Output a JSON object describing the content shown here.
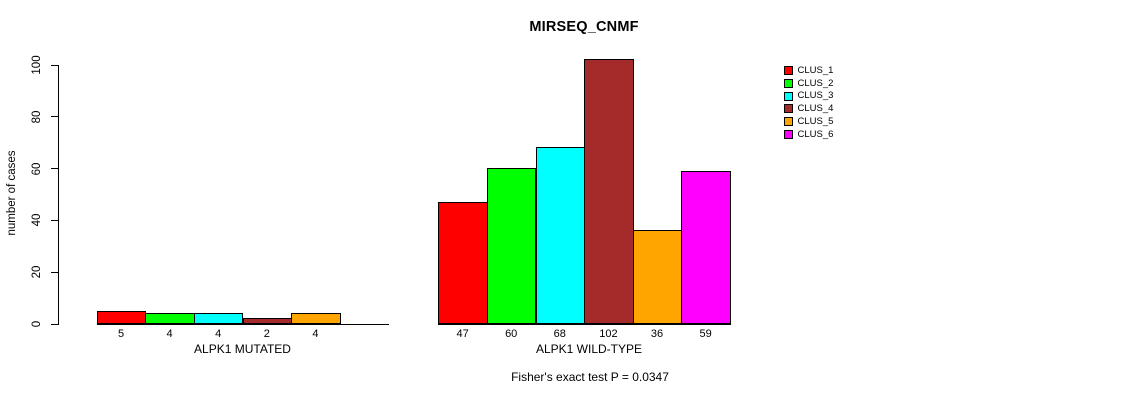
{
  "chart_data": {
    "type": "bar",
    "title": "MIRSEQ_CNMF",
    "ylabel": "number of cases",
    "xlabel": "",
    "ylim": [
      0,
      100
    ],
    "yticks": [
      0,
      20,
      40,
      60,
      80,
      100
    ],
    "grid": false,
    "legend_position": "right-outside",
    "series_labels": [
      "CLUS_1",
      "CLUS_2",
      "CLUS_3",
      "CLUS_4",
      "CLUS_5",
      "CLUS_6"
    ],
    "colors": [
      "#ff0000",
      "#00ff00",
      "#00ffff",
      "#a52a2a",
      "#ffa500",
      "#ff00ff"
    ],
    "groups": [
      {
        "label": "ALPK1 MUTATED",
        "values": [
          5,
          4,
          4,
          2,
          4,
          0
        ],
        "bar_labels": [
          "5",
          "4",
          "4",
          "2",
          "4",
          ""
        ]
      },
      {
        "label": "ALPK1 WILD-TYPE",
        "values": [
          47,
          60,
          68,
          102,
          36,
          59
        ],
        "bar_labels": [
          "47",
          "60",
          "68",
          "102",
          "36",
          "59"
        ]
      }
    ],
    "annotation": "Fisher's exact test P = 0.0347"
  }
}
